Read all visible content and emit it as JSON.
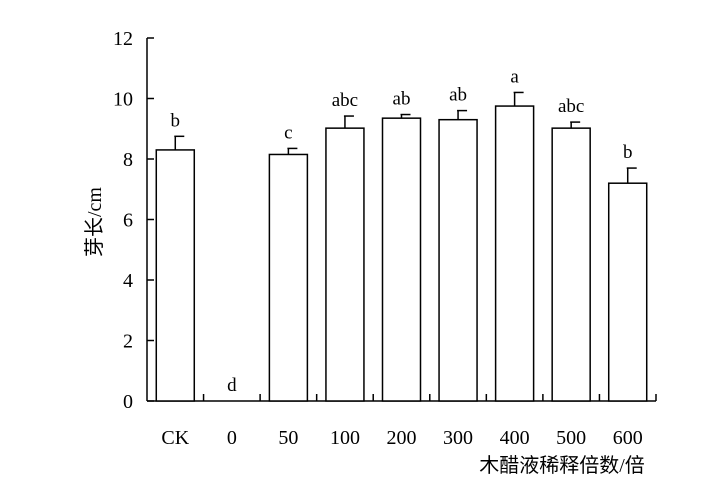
{
  "chart_data": {
    "type": "bar",
    "categories": [
      "CK",
      "0",
      "50",
      "100",
      "200",
      "300",
      "400",
      "500",
      "600"
    ],
    "values": [
      8.3,
      0.0,
      8.15,
      9.02,
      9.35,
      9.3,
      9.75,
      9.02,
      7.2
    ],
    "error": [
      0.45,
      0.0,
      0.2,
      0.4,
      0.12,
      0.3,
      0.45,
      0.2,
      0.5
    ],
    "significance": [
      "b",
      "d",
      "c",
      "abc",
      "ab",
      "ab",
      "a",
      "abc",
      "b"
    ],
    "xlabel": "木醋液稀释倍数/倍",
    "ylabel": "芽长/cm",
    "ylim": [
      0,
      12
    ],
    "yticks": [
      0,
      2,
      4,
      6,
      8,
      10,
      12
    ],
    "grid": false,
    "bar_fill": "#ffffff",
    "bar_stroke": "#000000"
  }
}
